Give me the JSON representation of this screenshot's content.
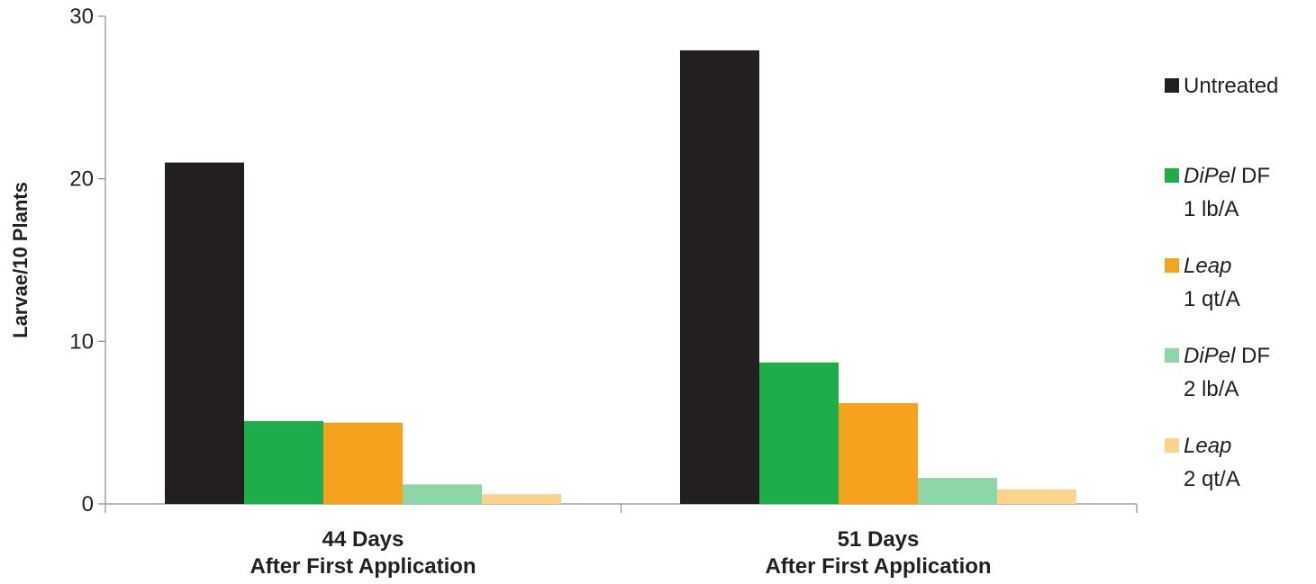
{
  "chart_data": {
    "type": "bar",
    "ylabel": "Larvae/10 Plants",
    "ylim": [
      0,
      30
    ],
    "yticks": [
      0,
      10,
      20,
      30
    ],
    "grid": false,
    "legend_position": "right",
    "categories": [
      {
        "line1": "44 Days",
        "line2": "After First Application"
      },
      {
        "line1": "51 Days",
        "line2": "After First Application"
      }
    ],
    "series": [
      {
        "name_italic": "",
        "name_plain": "Untreated",
        "rate": "",
        "color": "#231f20",
        "values": [
          21.0,
          27.9
        ]
      },
      {
        "name_italic": "DiPel",
        "name_plain": " DF",
        "rate": "1 lb/A",
        "color": "#1fad4b",
        "values": [
          5.1,
          8.7
        ]
      },
      {
        "name_italic": "Leap",
        "name_plain": "",
        "rate": "1 qt/A",
        "color": "#f7a21c",
        "values": [
          5.0,
          6.2
        ]
      },
      {
        "name_italic": "DiPel",
        "name_plain": " DF",
        "rate": "2 lb/A",
        "color": "#8dd6a6",
        "values": [
          1.2,
          1.6
        ]
      },
      {
        "name_italic": "Leap",
        "name_plain": "",
        "rate": "2 qt/A",
        "color": "#fdd38b",
        "values": [
          0.6,
          0.9
        ]
      }
    ]
  }
}
